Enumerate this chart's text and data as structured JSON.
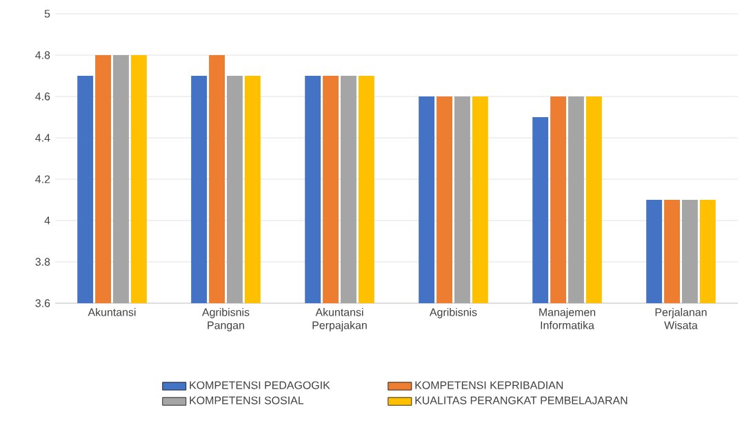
{
  "chart_data": {
    "type": "bar",
    "categories": [
      "Akuntansi",
      "Agribisnis Pangan",
      "Akuntansi Perpajakan",
      "Agribisnis",
      "Manajemen Informatika",
      "Perjalanan Wisata"
    ],
    "series": [
      {
        "name": "KOMPETENSI PEDAGOGIK",
        "color": "#4472c4",
        "values": [
          4.7,
          4.7,
          4.7,
          4.6,
          4.5,
          4.1
        ]
      },
      {
        "name": "KOMPETENSI KEPRIBADIAN",
        "color": "#ed7d31",
        "values": [
          4.8,
          4.8,
          4.7,
          4.6,
          4.6,
          4.1
        ]
      },
      {
        "name": "KOMPETENSI SOSIAL",
        "color": "#a5a5a5",
        "values": [
          4.8,
          4.7,
          4.7,
          4.6,
          4.6,
          4.1
        ]
      },
      {
        "name": "KUALITAS PERANGKAT PEMBELAJARAN",
        "color": "#ffc000",
        "values": [
          4.8,
          4.7,
          4.7,
          4.6,
          4.6,
          4.1
        ]
      }
    ],
    "ylim": [
      3.6,
      5
    ],
    "yticks": [
      3.6,
      3.8,
      4,
      4.2,
      4.4,
      4.6,
      4.8,
      5
    ],
    "grid": "y",
    "legend": "bottom"
  }
}
